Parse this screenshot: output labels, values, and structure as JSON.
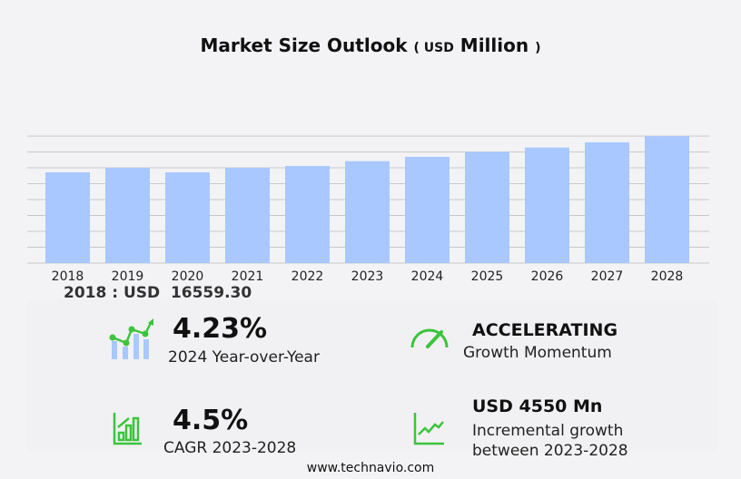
{
  "header": {
    "title": "Market Size Outlook",
    "unit_prefix": "USD",
    "unit": "Million"
  },
  "chart_data": {
    "type": "bar",
    "title": "Market Size Outlook (USD Million)",
    "categories": [
      "2018",
      "2019",
      "2020",
      "2021",
      "2022",
      "2023",
      "2024",
      "2025",
      "2026",
      "2027",
      "2028"
    ],
    "values": [
      16559.3,
      17390,
      16560,
      17390,
      17720,
      18600,
      19387,
      20300,
      21100,
      22050,
      23150
    ],
    "ylim": [
      0,
      23180
    ],
    "grid": true,
    "color": "#a8c8ff"
  },
  "annotation": "2018 : USD  16559.30",
  "stats": {
    "yoy": {
      "value": "4.23%",
      "label": "2024 Year-over-Year"
    },
    "momentum": {
      "value": "ACCELERATING",
      "label": "Growth Momentum"
    },
    "cagr": {
      "value": "4.5%",
      "label": "CAGR 2023-2028"
    },
    "incremental": {
      "value": "USD 4550 Mn",
      "label1": "Incremental growth",
      "label2": "between 2023-2028"
    }
  },
  "footer": "www.technavio.com",
  "colors": {
    "accent": "#3cc43c",
    "bar": "#a8c8ff"
  }
}
